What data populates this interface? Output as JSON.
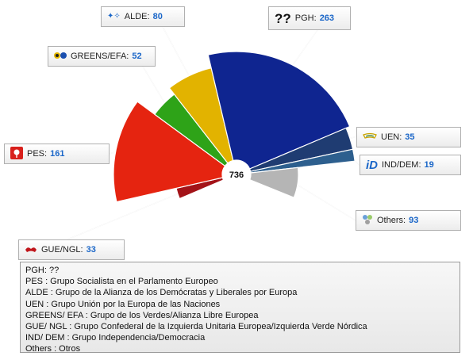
{
  "chart_data": {
    "type": "pie",
    "style": "half-donut",
    "total": "736",
    "slices": [
      {
        "key": "gue",
        "name": "GUE/NGL",
        "value": 33,
        "color": "#a31318",
        "icon": "gue-logo-icon"
      },
      {
        "key": "pes",
        "name": "PES",
        "value": 161,
        "color": "#e52410",
        "icon": "pes-rose-icon"
      },
      {
        "key": "greens",
        "name": "GREENS/EFA",
        "value": 52,
        "color": "#2ea318",
        "icon": "greens-logo-icon"
      },
      {
        "key": "alde",
        "name": "ALDE",
        "value": 80,
        "color": "#e2b300",
        "icon": "alde-logo-icon"
      },
      {
        "key": "pgh",
        "name": "PGH",
        "value": 263,
        "color": "#0f2590",
        "icon": "question-mark-icon",
        "icon_text": "??"
      },
      {
        "key": "uen",
        "name": "UEN",
        "value": 35,
        "color": "#1f3c72",
        "icon": "uen-logo-icon"
      },
      {
        "key": "ind",
        "name": "IND/DEM",
        "value": 19,
        "color": "#2d5f8e",
        "icon": "id-logo-icon",
        "icon_text": "iD"
      },
      {
        "key": "others",
        "name": "Others",
        "value": 93,
        "color": "#b5b5b5",
        "icon": "others-icon"
      }
    ]
  },
  "legend": {
    "lines": [
      "PGH: ??",
      "PES : Grupo Socialista en el Parlamento Europeo",
      "ALDE : Grupo de la Alianza de los Demócratas y Liberales por Europa",
      "UEN : Grupo Unión por la Europa de las Naciones",
      "GREENS/ EFA : Grupo de los Verdes/Alianza Libre Europea",
      "GUE/ NGL : Grupo Confederal de la Izquierda Unitaria Europea/Izquierda Verde Nórdica",
      "IND/ DEM : Grupo Independencia/Democracia",
      "Others : Otros"
    ]
  }
}
